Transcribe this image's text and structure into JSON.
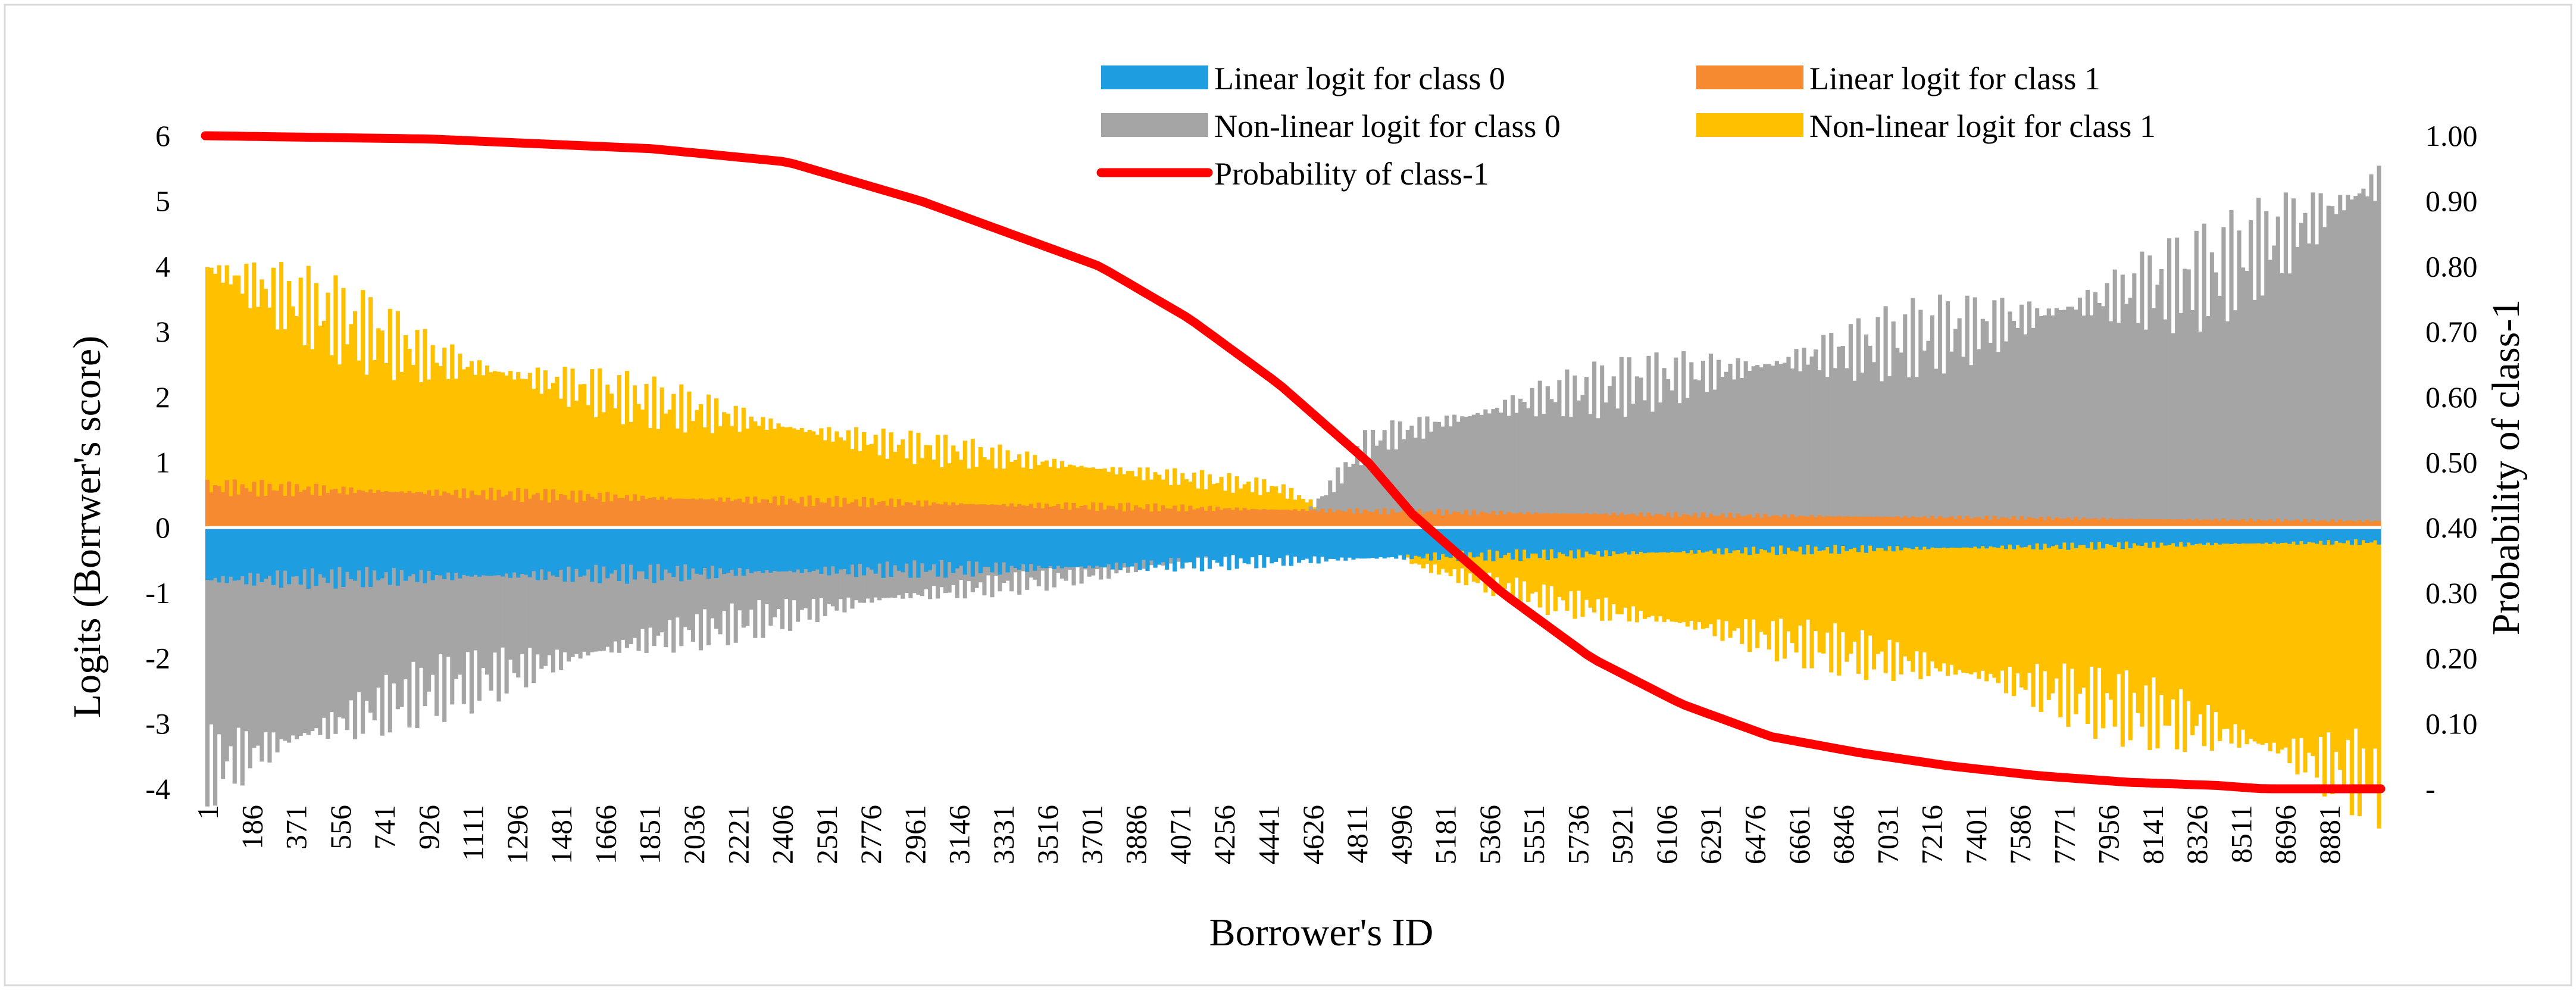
{
  "chart_data": {
    "type": "bar",
    "title": "",
    "xlabel": "Borrower's ID",
    "ylabel": "Logits (Borrwer's score)",
    "y2label": "Probability of class-1",
    "ylim": [
      -4,
      6
    ],
    "y2lim": [
      0,
      1
    ],
    "x_range": [
      1,
      9000
    ],
    "x_ticks": [
      "1",
      "186",
      "371",
      "556",
      "741",
      "926",
      "1111",
      "1296",
      "1481",
      "1666",
      "1851",
      "2036",
      "2221",
      "2406",
      "2591",
      "2776",
      "2961",
      "3146",
      "3331",
      "3516",
      "3701",
      "3886",
      "4071",
      "4256",
      "4441",
      "4626",
      "4811",
      "4996",
      "5181",
      "5366",
      "5551",
      "5736",
      "5921",
      "6106",
      "6291",
      "6476",
      "6661",
      "6846",
      "7031",
      "7216",
      "7401",
      "7586",
      "7771",
      "7956",
      "8141",
      "8326",
      "8511",
      "8696",
      "8881"
    ],
    "y_ticks": [
      "-4",
      "-3",
      "-2",
      "-1",
      "0",
      "1",
      "2",
      "3",
      "4",
      "5",
      "6"
    ],
    "y2_ticks": [
      "-",
      "0.10",
      "0.20",
      "0.30",
      "0.40",
      "0.50",
      "0.60",
      "0.70",
      "0.80",
      "0.90",
      "1.00"
    ],
    "legend": [
      {
        "label": "Linear logit for class 0",
        "color": "#1e9ee0",
        "kind": "bar"
      },
      {
        "label": "Linear logit for class 1",
        "color": "#f58a30",
        "kind": "bar"
      },
      {
        "label": "Non-linear logit for class 0",
        "color": "#a5a5a5",
        "kind": "bar"
      },
      {
        "label": "Non-linear logit for class 1",
        "color": "#ffc000",
        "kind": "bar"
      },
      {
        "label": "Probability of class-1",
        "color": "#ff0000",
        "kind": "line"
      }
    ],
    "series": [
      {
        "name": "Non-linear logit for class 1",
        "color": "#ffc000",
        "x": [
          1,
          926,
          1851,
          2776,
          3701,
          4441,
          4811,
          4996,
          5551,
          6476,
          7401,
          8326,
          9000
        ],
        "values": [
          4.0,
          2.6,
          1.9,
          1.3,
          0.9,
          0.6,
          0.0,
          -0.55,
          -1.1,
          -1.7,
          -2.3,
          -3.1,
          -3.9
        ]
      },
      {
        "name": "Non-linear logit for class 0",
        "color": "#a5a5a5",
        "x": [
          1,
          926,
          1851,
          2776,
          3701,
          4441,
          4811,
          4996,
          5551,
          6476,
          7401,
          8326,
          9000
        ],
        "values": [
          -3.7,
          -2.5,
          -1.7,
          -1.1,
          -0.7,
          -0.3,
          1.3,
          1.5,
          2.0,
          2.5,
          3.1,
          3.9,
          5.3
        ]
      },
      {
        "name": "Linear logit for class 1",
        "color": "#f58a30",
        "x": [
          1,
          1851,
          3701,
          4996,
          6476,
          8326,
          9000
        ],
        "values": [
          0.62,
          0.45,
          0.32,
          0.24,
          0.18,
          0.12,
          0.1
        ]
      },
      {
        "name": "Linear logit for class 0",
        "color": "#1e9ee0",
        "x": [
          1,
          1851,
          3701,
          4996,
          6476,
          8326,
          9000
        ],
        "values": [
          -0.8,
          -0.7,
          -0.6,
          -0.45,
          -0.35,
          -0.25,
          -0.22
        ]
      },
      {
        "name": "Probability of class-1",
        "color": "#ff0000",
        "axis": "secondary",
        "x": [
          1,
          926,
          1851,
          2406,
          2961,
          3331,
          3701,
          4071,
          4441,
          4811,
          4996,
          5181,
          5366,
          5736,
          6106,
          6476,
          6846,
          7216,
          7586,
          7956,
          8326,
          8511,
          9000
        ],
        "values": [
          1.0,
          0.995,
          0.98,
          0.96,
          0.9,
          0.85,
          0.8,
          0.72,
          0.62,
          0.5,
          0.42,
          0.36,
          0.3,
          0.2,
          0.13,
          0.08,
          0.055,
          0.035,
          0.02,
          0.01,
          0.005,
          0.0,
          0.0
        ]
      }
    ]
  }
}
